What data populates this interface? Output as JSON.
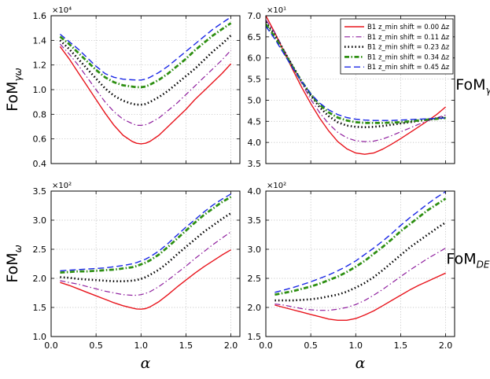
{
  "series_styles": [
    {
      "color": "#e8141c",
      "dash": "",
      "width": 1.4
    },
    {
      "color": "#8f1f9e",
      "dash": "7,3,1.5,3",
      "width": 1.2
    },
    {
      "color": "#000000",
      "dash": "1.5,3",
      "width": 2.6
    },
    {
      "color": "#2e8f12",
      "dash": "6,2.5,1.5,2.5",
      "width": 2.8
    },
    {
      "color": "#1a27e6",
      "dash": "8,4",
      "width": 1.4
    }
  ],
  "legend": {
    "entries": [
      "B1 z_min shift = 0.00 Δz",
      "B1 z_min shift = 0.11 Δz",
      "B1 z_min shift = 0.23 Δz",
      "B1 z_min shift = 0.34 Δz",
      "B1 z_min shift = 0.45 Δz"
    ]
  },
  "chart_data": [
    {
      "type": "line",
      "panel": "top-left",
      "ylabel": "FoM_γω",
      "xlabel": "",
      "scale_label": "×10⁴",
      "xlim": [
        0.0,
        2.1
      ],
      "ylim": [
        0.4,
        1.6
      ],
      "xticks": [
        0.0,
        0.5,
        1.0,
        1.5,
        2.0
      ],
      "yticks": [
        0.4,
        0.6,
        0.8,
        1.0,
        1.2,
        1.4,
        1.6
      ],
      "xtick_labels": [],
      "ytick_labels": [
        "0.4",
        "0.6",
        "0.8",
        "1.0",
        "1.2",
        "1.4",
        "1.6"
      ],
      "grid": true,
      "x": [
        0.1,
        0.2,
        0.3,
        0.4,
        0.5,
        0.6,
        0.7,
        0.8,
        0.9,
        0.95,
        1.0,
        1.05,
        1.1,
        1.2,
        1.3,
        1.4,
        1.5,
        1.6,
        1.7,
        1.8,
        1.9,
        2.0
      ],
      "series": [
        {
          "name": "B1 z_min shift = 0.00 Δz",
          "values": [
            1.35,
            1.25,
            1.14,
            1.03,
            0.92,
            0.81,
            0.71,
            0.63,
            0.58,
            0.565,
            0.56,
            0.565,
            0.58,
            0.63,
            0.7,
            0.77,
            0.84,
            0.92,
            0.99,
            1.06,
            1.13,
            1.21
          ]
        },
        {
          "name": "B1 z_min shift = 0.11 Δz",
          "values": [
            1.37,
            1.29,
            1.2,
            1.1,
            1.0,
            0.9,
            0.82,
            0.76,
            0.725,
            0.71,
            0.71,
            0.715,
            0.73,
            0.77,
            0.83,
            0.89,
            0.96,
            1.03,
            1.1,
            1.17,
            1.24,
            1.32
          ]
        },
        {
          "name": "B1 z_min shift = 0.23 Δz",
          "values": [
            1.4,
            1.33,
            1.25,
            1.17,
            1.09,
            1.01,
            0.95,
            0.91,
            0.885,
            0.878,
            0.878,
            0.883,
            0.9,
            0.94,
            0.99,
            1.05,
            1.11,
            1.17,
            1.24,
            1.31,
            1.37,
            1.44
          ]
        },
        {
          "name": "B1 z_min shift = 0.34 Δz",
          "values": [
            1.43,
            1.37,
            1.3,
            1.23,
            1.16,
            1.1,
            1.06,
            1.035,
            1.025,
            1.02,
            1.02,
            1.025,
            1.04,
            1.08,
            1.13,
            1.19,
            1.25,
            1.32,
            1.38,
            1.44,
            1.49,
            1.54
          ]
        },
        {
          "name": "B1 z_min shift = 0.45 Δz",
          "values": [
            1.45,
            1.39,
            1.33,
            1.26,
            1.19,
            1.13,
            1.1,
            1.085,
            1.08,
            1.078,
            1.078,
            1.085,
            1.1,
            1.14,
            1.19,
            1.25,
            1.31,
            1.37,
            1.43,
            1.49,
            1.54,
            1.59
          ]
        }
      ]
    },
    {
      "type": "line",
      "panel": "top-right",
      "ylabel": "FoM_γ",
      "xlabel": "",
      "scale_label": "×10¹",
      "xlim": [
        0.0,
        2.1
      ],
      "ylim": [
        3.5,
        7.0
      ],
      "xticks": [
        0.0,
        0.5,
        1.0,
        1.5,
        2.0
      ],
      "yticks": [
        3.5,
        4.0,
        4.5,
        5.0,
        5.5,
        6.0,
        6.5,
        7.0
      ],
      "xtick_labels": [],
      "ytick_labels": [
        "3.5",
        "4.0",
        "4.5",
        "5.0",
        "5.5",
        "6.0",
        "6.5",
        "7.0"
      ],
      "grid": true,
      "x": [
        0.0,
        0.1,
        0.2,
        0.3,
        0.4,
        0.5,
        0.6,
        0.7,
        0.8,
        0.9,
        1.0,
        1.1,
        1.2,
        1.3,
        1.4,
        1.5,
        1.6,
        1.7,
        1.8,
        1.9,
        2.0
      ],
      "series": [
        {
          "name": "B1 z_min shift = 0.00 Δz",
          "values": [
            7.0,
            6.6,
            6.15,
            5.72,
            5.3,
            4.92,
            4.57,
            4.27,
            4.02,
            3.85,
            3.75,
            3.72,
            3.75,
            3.84,
            3.96,
            4.09,
            4.23,
            4.37,
            4.51,
            4.66,
            4.84
          ]
        },
        {
          "name": "B1 z_min shift = 0.11 Δz",
          "values": [
            6.9,
            6.6,
            6.2,
            5.8,
            5.4,
            5.02,
            4.7,
            4.44,
            4.24,
            4.11,
            4.04,
            4.02,
            4.03,
            4.08,
            4.16,
            4.25,
            4.34,
            4.43,
            4.51,
            4.58,
            4.65
          ]
        },
        {
          "name": "B1 z_min shift = 0.23 Δz",
          "values": [
            6.85,
            6.55,
            6.17,
            5.8,
            5.44,
            5.11,
            4.83,
            4.62,
            4.48,
            4.4,
            4.37,
            4.36,
            4.37,
            4.39,
            4.42,
            4.45,
            4.48,
            4.51,
            4.54,
            4.57,
            4.6
          ]
        },
        {
          "name": "B1 z_min shift = 0.34 Δz",
          "values": [
            6.8,
            6.5,
            6.14,
            5.78,
            5.44,
            5.14,
            4.89,
            4.71,
            4.59,
            4.52,
            4.48,
            4.46,
            4.46,
            4.46,
            4.47,
            4.48,
            4.5,
            4.52,
            4.54,
            4.56,
            4.58
          ]
        },
        {
          "name": "B1 z_min shift = 0.45 Δz",
          "values": [
            6.75,
            6.45,
            6.1,
            5.76,
            5.44,
            5.15,
            4.93,
            4.77,
            4.66,
            4.59,
            4.55,
            4.53,
            4.52,
            4.52,
            4.52,
            4.53,
            4.54,
            4.55,
            4.56,
            4.57,
            4.58
          ]
        }
      ]
    },
    {
      "type": "line",
      "panel": "bottom-left",
      "ylabel": "FoM_ω",
      "xlabel": "α",
      "scale_label": "×10²",
      "xlim": [
        0.0,
        2.1
      ],
      "ylim": [
        1.0,
        3.5
      ],
      "xticks": [
        0.0,
        0.5,
        1.0,
        1.5,
        2.0
      ],
      "yticks": [
        1.0,
        1.5,
        2.0,
        2.5,
        3.0,
        3.5
      ],
      "xtick_labels": [
        "0.0",
        "0.5",
        "1.0",
        "1.5",
        "2.0"
      ],
      "ytick_labels": [
        "1.0",
        "1.5",
        "2.0",
        "2.5",
        "3.0",
        "3.5"
      ],
      "grid": true,
      "x": [
        0.1,
        0.2,
        0.3,
        0.4,
        0.5,
        0.6,
        0.7,
        0.8,
        0.9,
        0.95,
        1.0,
        1.05,
        1.1,
        1.2,
        1.3,
        1.4,
        1.5,
        1.6,
        1.7,
        1.8,
        1.9,
        2.0
      ],
      "series": [
        {
          "name": "B1 z_min shift = 0.00 Δz",
          "values": [
            1.93,
            1.88,
            1.82,
            1.76,
            1.7,
            1.64,
            1.58,
            1.53,
            1.49,
            1.475,
            1.47,
            1.48,
            1.51,
            1.6,
            1.72,
            1.85,
            1.97,
            2.09,
            2.2,
            2.3,
            2.4,
            2.49
          ]
        },
        {
          "name": "B1 z_min shift = 0.11 Δz",
          "values": [
            1.96,
            1.93,
            1.9,
            1.86,
            1.82,
            1.78,
            1.75,
            1.72,
            1.71,
            1.71,
            1.72,
            1.74,
            1.77,
            1.86,
            1.97,
            2.09,
            2.21,
            2.34,
            2.46,
            2.58,
            2.69,
            2.8
          ]
        },
        {
          "name": "B1 z_min shift = 0.23 Δz",
          "values": [
            2.02,
            2.01,
            1.99,
            1.98,
            1.97,
            1.96,
            1.95,
            1.95,
            1.96,
            1.97,
            1.99,
            2.02,
            2.06,
            2.15,
            2.27,
            2.41,
            2.54,
            2.67,
            2.8,
            2.91,
            3.02,
            3.12
          ]
        },
        {
          "name": "B1 z_min shift = 0.34 Δz",
          "values": [
            2.1,
            2.11,
            2.12,
            2.12,
            2.13,
            2.14,
            2.15,
            2.17,
            2.19,
            2.21,
            2.24,
            2.27,
            2.31,
            2.41,
            2.54,
            2.68,
            2.82,
            2.96,
            3.09,
            3.2,
            3.31,
            3.4
          ]
        },
        {
          "name": "B1 z_min shift = 0.45 Δz",
          "values": [
            2.13,
            2.14,
            2.15,
            2.16,
            2.17,
            2.18,
            2.2,
            2.22,
            2.25,
            2.27,
            2.3,
            2.33,
            2.37,
            2.47,
            2.6,
            2.74,
            2.88,
            3.01,
            3.14,
            3.26,
            3.36,
            3.45
          ]
        }
      ]
    },
    {
      "type": "line",
      "panel": "bottom-right",
      "ylabel": "FoM_DETF",
      "xlabel": "α",
      "scale_label": "×10²",
      "xlim": [
        0.0,
        2.1
      ],
      "ylim": [
        1.5,
        4.0
      ],
      "xticks": [
        0.0,
        0.5,
        1.0,
        1.5,
        2.0
      ],
      "yticks": [
        1.5,
        2.0,
        2.5,
        3.0,
        3.5,
        4.0
      ],
      "xtick_labels": [
        "0.0",
        "0.5",
        "1.0",
        "1.5",
        "2.0"
      ],
      "ytick_labels": [
        "1.5",
        "2.0",
        "2.5",
        "3.0",
        "3.5",
        "4.0"
      ],
      "grid": true,
      "x": [
        0.1,
        0.2,
        0.3,
        0.4,
        0.5,
        0.6,
        0.7,
        0.8,
        0.9,
        1.0,
        1.1,
        1.2,
        1.3,
        1.4,
        1.5,
        1.6,
        1.7,
        1.8,
        1.9,
        2.0
      ],
      "series": [
        {
          "name": "B1 z_min shift = 0.00 Δz",
          "values": [
            2.04,
            2.0,
            1.96,
            1.92,
            1.88,
            1.84,
            1.8,
            1.78,
            1.78,
            1.81,
            1.87,
            1.94,
            2.03,
            2.12,
            2.21,
            2.3,
            2.38,
            2.45,
            2.52,
            2.59
          ]
        },
        {
          "name": "B1 z_min shift = 0.11 Δz",
          "values": [
            2.06,
            2.04,
            2.01,
            1.98,
            1.96,
            1.95,
            1.95,
            1.97,
            2.0,
            2.05,
            2.12,
            2.21,
            2.31,
            2.42,
            2.53,
            2.64,
            2.74,
            2.84,
            2.93,
            3.02
          ]
        },
        {
          "name": "B1 z_min shift = 0.23 Δz",
          "values": [
            2.12,
            2.12,
            2.12,
            2.13,
            2.14,
            2.16,
            2.19,
            2.22,
            2.27,
            2.34,
            2.42,
            2.52,
            2.64,
            2.77,
            2.9,
            3.03,
            3.14,
            3.25,
            3.36,
            3.46
          ]
        },
        {
          "name": "B1 z_min shift = 0.34 Δz",
          "values": [
            2.22,
            2.25,
            2.28,
            2.32,
            2.36,
            2.41,
            2.47,
            2.53,
            2.61,
            2.7,
            2.8,
            2.92,
            3.04,
            3.17,
            3.31,
            3.43,
            3.55,
            3.67,
            3.77,
            3.87
          ]
        },
        {
          "name": "B1 z_min shift = 0.45 Δz",
          "values": [
            2.26,
            2.3,
            2.34,
            2.39,
            2.44,
            2.5,
            2.56,
            2.63,
            2.71,
            2.8,
            2.91,
            3.02,
            3.14,
            3.27,
            3.41,
            3.54,
            3.66,
            3.78,
            3.89,
            3.99
          ]
        }
      ]
    }
  ]
}
